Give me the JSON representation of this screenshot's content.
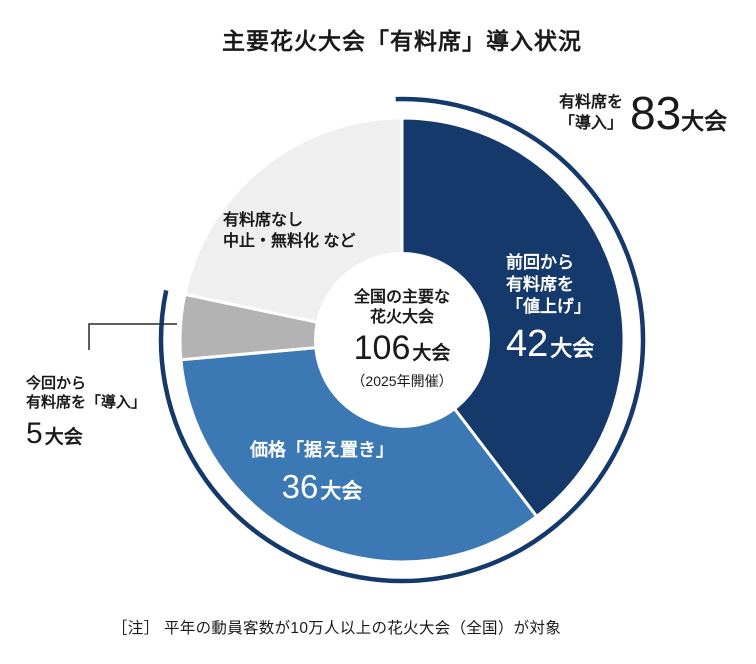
{
  "title": "主要花火大会「有料席」導入状況",
  "footnote": "［注］ 平年の動員客数が10万人以上の花火大会（全国）が対象",
  "labels": {
    "outer": {
      "lines": [
        "有料席を",
        "「導入」"
      ],
      "number": "83",
      "unit": "大会"
    },
    "raise": {
      "lines": [
        "前回から",
        "有料席を",
        "「値上げ」"
      ],
      "number": "42",
      "unit": "大会"
    },
    "keep": {
      "line": "価格「据え置き」",
      "number": "36",
      "unit": "大会"
    },
    "new_intro": {
      "lines": [
        "今回から",
        "有料席を「導入」"
      ],
      "number": "5",
      "unit": "大会"
    },
    "none": {
      "lines": [
        "有料席なし",
        "中止・無料化 など"
      ]
    },
    "center": {
      "lines": [
        "全国の主要な",
        "花火大会"
      ],
      "number": "106",
      "unit": "大会",
      "sub": "（2025年開催）"
    }
  },
  "chart_data": {
    "type": "pie",
    "donut": true,
    "title": "主要花火大会「有料席」導入状況",
    "total": 106,
    "total_unit": "大会",
    "year_note": "（2025年開催）",
    "categories": [
      "前回から有料席を「値上げ」",
      "価格「据え置き」",
      "今回から有料席を「導入」",
      "有料席なし・中止・無料化など"
    ],
    "values": [
      42,
      36,
      5,
      23
    ],
    "units": "大会",
    "colors": [
      "#16396b",
      "#3c79b4",
      "#b3b3b3",
      "#efefef"
    ],
    "start_angle_deg": 0,
    "direction": "clockwise",
    "outer_arc": {
      "label": "有料席を「導入」",
      "value": 83,
      "unit": "大会",
      "color": "#16396b"
    },
    "legend_position": "none",
    "grid": false
  }
}
